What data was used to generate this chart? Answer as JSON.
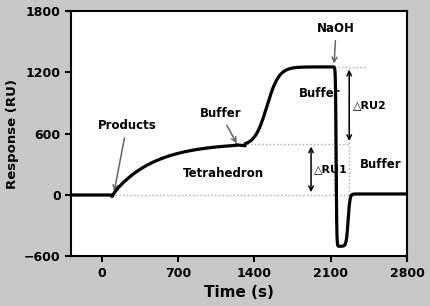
{
  "xlabel": "Time (s)",
  "ylabel": "Response (RU)",
  "xlim": [
    -280,
    2800
  ],
  "ylim": [
    -600,
    1800
  ],
  "xticks": [
    0,
    700,
    1400,
    2100,
    2800
  ],
  "yticks": [
    -600,
    0,
    600,
    1200,
    1800
  ],
  "bg_color": "#ffffff",
  "fig_bg": "#c8c8c8",
  "curve_color": "#000000",
  "dotted_color": "#aaaaaa",
  "ref_y0": 0,
  "ref_y500": 500,
  "ref_y1250": 1250,
  "naoh_x": 2130,
  "buffer2_x": 2270,
  "dru1_x": 1920,
  "dru2_x": 2270
}
